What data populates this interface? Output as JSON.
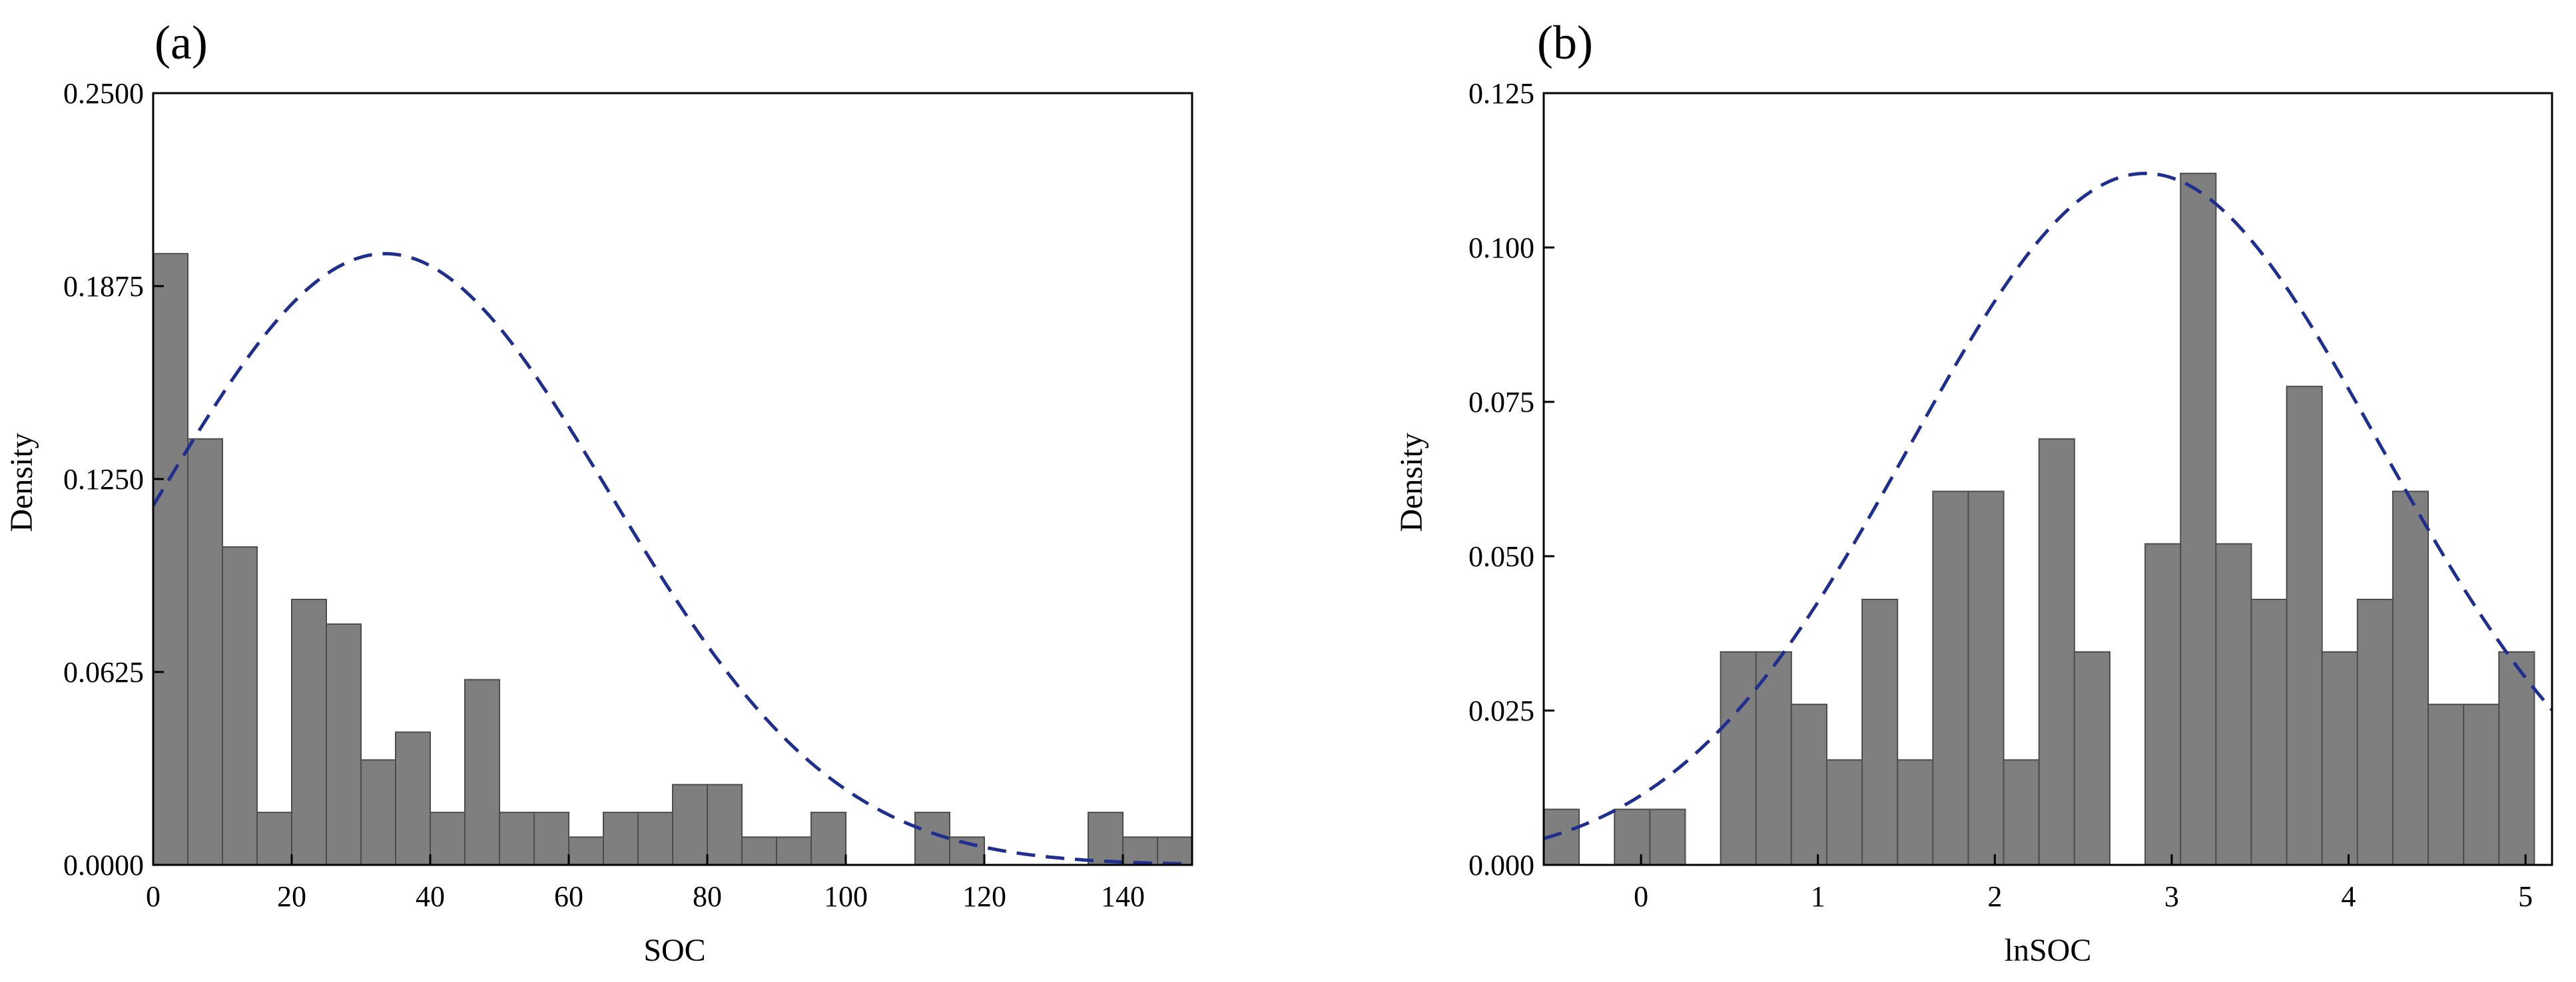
{
  "chart_data": [
    {
      "panel_label": "(a)",
      "type": "bar",
      "title": "",
      "xlabel": "SOC",
      "ylabel": "Density",
      "xlim": [
        0,
        150
      ],
      "ylim": [
        0,
        0.25
      ],
      "xticks": [
        0,
        20,
        40,
        60,
        80,
        100,
        120,
        140
      ],
      "xtick_labels": [
        "0",
        "20",
        "40",
        "60",
        "80",
        "100",
        "120",
        "140"
      ],
      "yticks": [
        0,
        0.0625,
        0.125,
        0.1875,
        0.25
      ],
      "ytick_labels": [
        "0.0000",
        "0.0625",
        "0.1250",
        "0.1875",
        "0.2500"
      ],
      "bins": {
        "left_edges": [
          0,
          5,
          10,
          15,
          20,
          25,
          30,
          35,
          40,
          45,
          50,
          55,
          60,
          65,
          70,
          75,
          80,
          85,
          90,
          95,
          110,
          115,
          135,
          140,
          145
        ],
        "width": 5,
        "values": [
          0.198,
          0.138,
          0.103,
          0.017,
          0.086,
          0.078,
          0.034,
          0.043,
          0.017,
          0.06,
          0.017,
          0.017,
          0.009,
          0.017,
          0.017,
          0.026,
          0.026,
          0.009,
          0.009,
          0.017,
          0.017,
          0.009,
          0.017,
          0.009,
          0.009
        ]
      },
      "fit_curve": {
        "type": "normal",
        "mean": 33.5,
        "sd": 32.5,
        "peak_density": 0.198,
        "color": "#1f2f8f",
        "style": "dashed"
      }
    },
    {
      "panel_label": "(b)",
      "type": "bar",
      "title": "",
      "xlabel": "lnSOC",
      "ylabel": "Density",
      "xlim": [
        -0.55,
        5.15
      ],
      "ylim": [
        0,
        0.125
      ],
      "xticks": [
        0,
        1,
        2,
        3,
        4,
        5
      ],
      "xtick_labels": [
        "0",
        "1",
        "2",
        "3",
        "4",
        "5"
      ],
      "yticks": [
        0,
        0.025,
        0.05,
        0.075,
        0.1,
        0.125
      ],
      "ytick_labels": [
        "0.000",
        "0.025",
        "0.050",
        "0.075",
        "0.100",
        "0.125"
      ],
      "bins": {
        "left_edges": [
          -0.55,
          -0.15,
          0.05,
          0.45,
          0.65,
          0.85,
          1.05,
          1.25,
          1.45,
          1.65,
          1.85,
          2.05,
          2.25,
          2.45,
          2.85,
          3.05,
          3.25,
          3.45,
          3.65,
          3.85,
          4.05,
          4.25,
          4.45,
          4.65,
          4.85
        ],
        "width": 0.2,
        "values": [
          0.009,
          0.009,
          0.009,
          0.0345,
          0.0345,
          0.026,
          0.017,
          0.043,
          0.017,
          0.0605,
          0.0605,
          0.017,
          0.069,
          0.0345,
          0.052,
          0.112,
          0.052,
          0.043,
          0.0775,
          0.0345,
          0.043,
          0.0605,
          0.026,
          0.026,
          0.0345
        ]
      },
      "fit_curve": {
        "type": "normal",
        "mean": 2.85,
        "sd": 1.33,
        "peak_density": 0.112,
        "color": "#1f2f8f",
        "style": "dashed"
      }
    }
  ]
}
